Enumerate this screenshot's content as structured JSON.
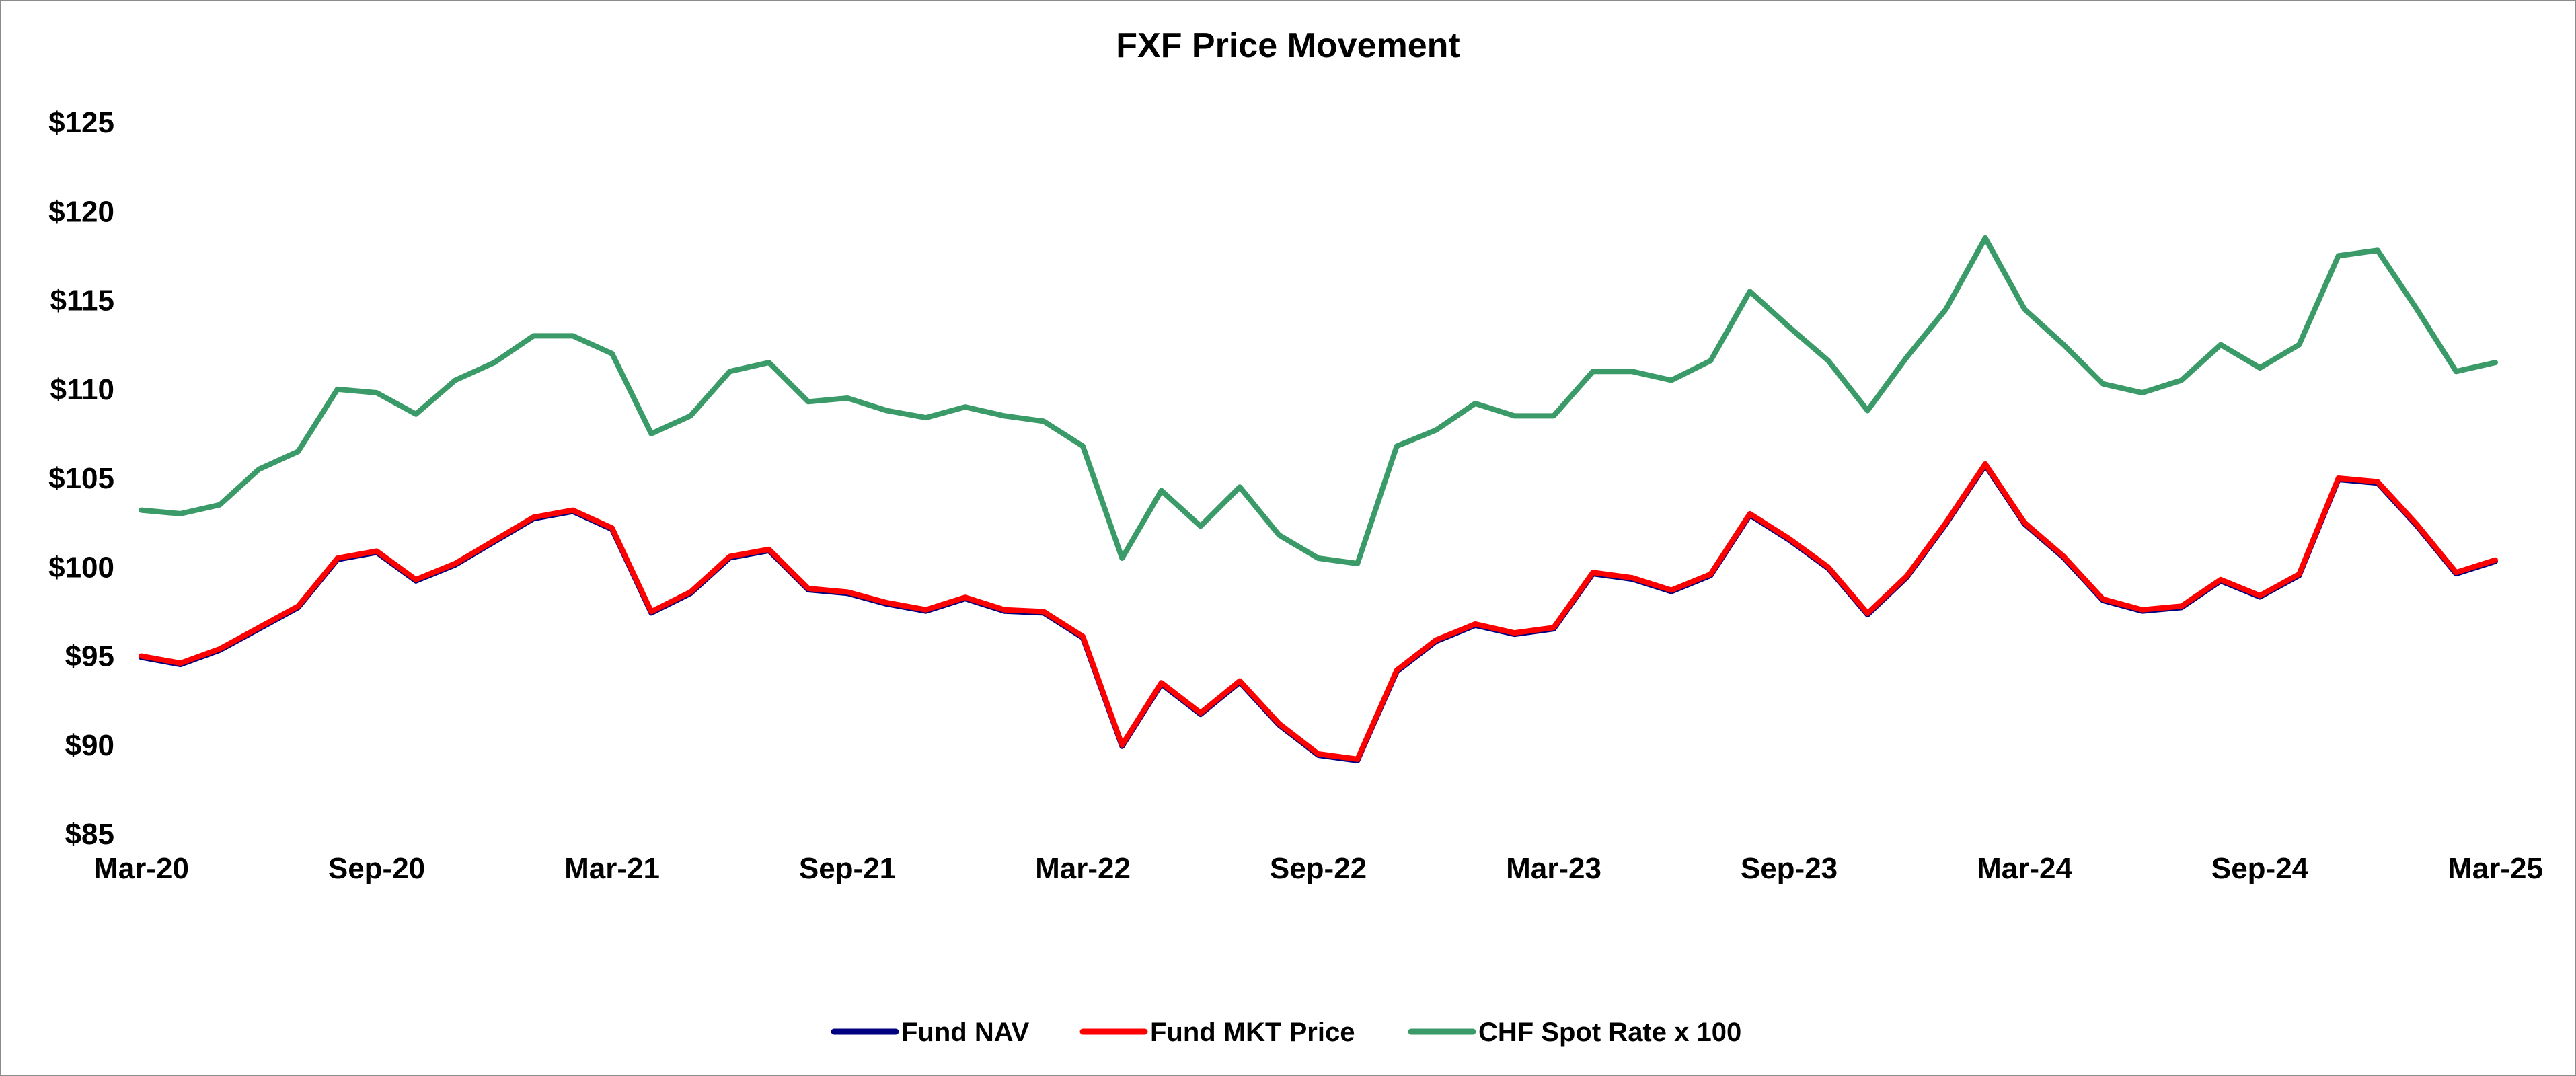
{
  "chart_data": {
    "type": "line",
    "title": "FXF Price Movement",
    "xlabel": "",
    "ylabel": "",
    "ylim": [
      85,
      125
    ],
    "yticks": [
      "$85",
      "$90",
      "$95",
      "$100",
      "$105",
      "$110",
      "$115",
      "$120",
      "$125"
    ],
    "xticks": [
      "Mar-20",
      "Sep-20",
      "Mar-21",
      "Sep-21",
      "Mar-22",
      "Sep-22",
      "Mar-23",
      "Sep-23",
      "Mar-24",
      "Sep-24",
      "Mar-25"
    ],
    "grid": false,
    "legend_position": "bottom",
    "x": [
      "Mar-20",
      "Apr-20",
      "May-20",
      "Jun-20",
      "Jul-20",
      "Aug-20",
      "Sep-20",
      "Oct-20",
      "Nov-20",
      "Dec-20",
      "Jan-21",
      "Feb-21",
      "Mar-21",
      "Apr-21",
      "May-21",
      "Jun-21",
      "Jul-21",
      "Aug-21",
      "Sep-21",
      "Oct-21",
      "Nov-21",
      "Dec-21",
      "Jan-22",
      "Feb-22",
      "Mar-22",
      "Apr-22",
      "May-22",
      "Jun-22",
      "Jul-22",
      "Aug-22",
      "Sep-22",
      "Oct-22",
      "Nov-22",
      "Dec-22",
      "Jan-23",
      "Feb-23",
      "Mar-23",
      "Apr-23",
      "May-23",
      "Jun-23",
      "Jul-23",
      "Aug-23",
      "Sep-23",
      "Oct-23",
      "Nov-23",
      "Dec-23",
      "Jan-24",
      "Feb-24",
      "Mar-24",
      "Apr-24",
      "May-24",
      "Jun-24",
      "Jul-24",
      "Aug-24",
      "Sep-24",
      "Oct-24",
      "Nov-24",
      "Dec-24",
      "Jan-25",
      "Feb-25",
      "Mar-25"
    ],
    "series": [
      {
        "name": "Fund NAV",
        "color": "#000080",
        "values": [
          95.0,
          94.6,
          95.4,
          96.6,
          97.8,
          100.5,
          100.9,
          99.3,
          100.2,
          101.5,
          102.8,
          103.2,
          102.2,
          97.5,
          98.6,
          100.6,
          101.0,
          98.8,
          98.6,
          98.0,
          97.6,
          98.3,
          97.6,
          97.5,
          96.1,
          90.0,
          93.5,
          91.8,
          93.6,
          91.2,
          89.5,
          89.2,
          94.2,
          95.9,
          96.8,
          96.3,
          96.6,
          99.7,
          99.4,
          98.7,
          99.6,
          103.0,
          101.6,
          100.0,
          97.4,
          99.5,
          102.5,
          105.8,
          102.5,
          100.6,
          98.2,
          97.6,
          97.8,
          99.3,
          98.4,
          99.6,
          105.0,
          104.8,
          102.4,
          99.7,
          100.4
        ]
      },
      {
        "name": "Fund MKT Price",
        "color": "#ff0000",
        "values": [
          95.0,
          94.6,
          95.4,
          96.6,
          97.8,
          100.5,
          100.9,
          99.3,
          100.2,
          101.5,
          102.8,
          103.2,
          102.2,
          97.5,
          98.6,
          100.6,
          101.0,
          98.8,
          98.6,
          98.0,
          97.6,
          98.3,
          97.6,
          97.5,
          96.1,
          90.0,
          93.5,
          91.8,
          93.6,
          91.2,
          89.5,
          89.2,
          94.2,
          95.9,
          96.8,
          96.3,
          96.6,
          99.7,
          99.4,
          98.7,
          99.6,
          103.0,
          101.6,
          100.0,
          97.4,
          99.5,
          102.5,
          105.8,
          102.5,
          100.6,
          98.2,
          97.6,
          97.8,
          99.3,
          98.4,
          99.6,
          105.0,
          104.8,
          102.4,
          99.7,
          100.4
        ]
      },
      {
        "name": "CHF Spot Rate x 100",
        "color": "#3a9a68",
        "values": [
          103.2,
          103.0,
          103.5,
          105.5,
          106.5,
          110.0,
          109.8,
          108.6,
          110.5,
          111.5,
          113.0,
          113.0,
          112.0,
          107.5,
          108.5,
          111.0,
          111.5,
          109.3,
          109.5,
          108.8,
          108.4,
          109.0,
          108.5,
          108.2,
          106.8,
          100.5,
          104.3,
          102.3,
          104.5,
          101.8,
          100.5,
          100.2,
          106.8,
          107.7,
          109.2,
          108.5,
          108.5,
          111.0,
          111.0,
          110.5,
          111.6,
          115.5,
          113.5,
          111.6,
          108.8,
          111.8,
          114.5,
          118.5,
          114.5,
          112.5,
          110.3,
          109.8,
          110.5,
          112.5,
          111.2,
          112.5,
          117.5,
          117.8,
          114.5,
          111.0,
          111.5
        ]
      }
    ]
  }
}
